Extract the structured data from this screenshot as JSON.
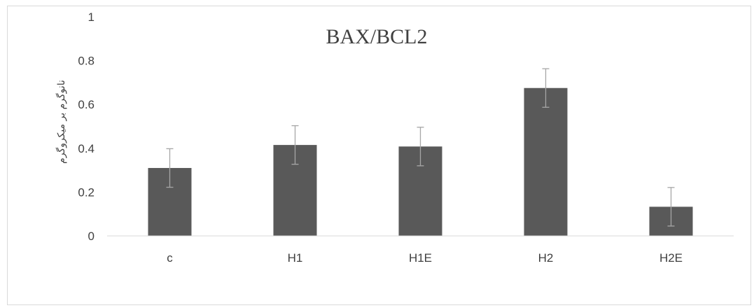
{
  "chart_data": {
    "type": "bar",
    "title": "BAX/BCL2",
    "xlabel": "",
    "ylabel": "نانوگرم بر میکروگرم",
    "categories": [
      "c",
      "H1",
      "H1E",
      "H2",
      "H2E"
    ],
    "values": [
      0.31,
      0.415,
      0.408,
      0.675,
      0.133
    ],
    "error": [
      0.088,
      0.088,
      0.088,
      0.088,
      0.088
    ],
    "ylim": [
      0,
      1
    ],
    "yticks": [
      "0",
      "0.2",
      "0.4",
      "0.6",
      "0.8",
      "1"
    ],
    "grid": false,
    "legend": "none",
    "bar_color": "#595959",
    "error_color": "#a6a6a6",
    "axis_color": "#d9d9d9"
  }
}
